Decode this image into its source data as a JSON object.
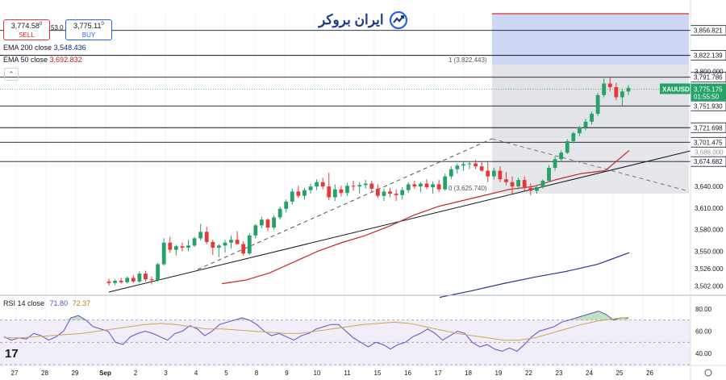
{
  "trade": {
    "sell_price": "3,774.58",
    "sell_sup": "0",
    "sell_label": "SELL",
    "spread": "53.0",
    "buy_price": "3,775.11",
    "buy_sup": "0",
    "buy_label": "BUY"
  },
  "legend": {
    "ema200_label": "EMA 200 close",
    "ema200_value": "3,548.436",
    "ema50_label": "EMA 50 close",
    "ema50_value": "3,692.832",
    "collapse_icon": "chevron-up-icon"
  },
  "brand": {
    "text": "ایران بروکر",
    "icon": "trend-arrow-icon"
  },
  "fib": {
    "top_label": "1 (3,822.443)",
    "bottom_label": "0 (3,625.740)"
  },
  "price_axis": {
    "ticks": [
      "3,800.000",
      "3,640.000",
      "3,610.000",
      "3,580.000",
      "3,550.000",
      "3,526.000",
      "3,502.000"
    ],
    "levels": [
      "3,856.821",
      "3,822.139",
      "3,791.786",
      "3,751.930",
      "3,721.698",
      "3,701.475",
      "3,674.682"
    ],
    "symbol": "XAUUSD",
    "last_price": "3,775.175",
    "countdown": "01:55:50",
    "partial_label": "3,688.000"
  },
  "rsi": {
    "label": "RSI 14 close",
    "rsi_value": "71.80",
    "ma_value": "72.37",
    "ticks": [
      "80.00",
      "60.00",
      "40.00"
    ]
  },
  "time_axis": {
    "labels": [
      "27",
      "28",
      "29",
      "Sep",
      "2",
      "3",
      "4",
      "5",
      "8",
      "9",
      "10",
      "11",
      "15",
      "16",
      "17",
      "18",
      "19",
      "22",
      "23",
      "24",
      "25",
      "26"
    ]
  },
  "tv_logo": "17",
  "settings_icon": "gear-icon",
  "chart_data": {
    "type": "candlestick",
    "symbol": "XAUUSD",
    "ohlc": [
      [
        3508,
        3512,
        3502,
        3506
      ],
      [
        3506,
        3511,
        3503,
        3509
      ],
      [
        3509,
        3513,
        3505,
        3507
      ],
      [
        3507,
        3515,
        3505,
        3513
      ],
      [
        3513,
        3517,
        3506,
        3508
      ],
      [
        3508,
        3522,
        3506,
        3519
      ],
      [
        3519,
        3523,
        3508,
        3511
      ],
      [
        3511,
        3515,
        3504,
        3510
      ],
      [
        3510,
        3534,
        3508,
        3532
      ],
      [
        3532,
        3568,
        3530,
        3562
      ],
      [
        3562,
        3570,
        3548,
        3552
      ],
      [
        3552,
        3559,
        3544,
        3557
      ],
      [
        3557,
        3562,
        3550,
        3555
      ],
      [
        3555,
        3566,
        3550,
        3558
      ],
      [
        3558,
        3570,
        3556,
        3568
      ],
      [
        3568,
        3588,
        3565,
        3577
      ],
      [
        3577,
        3584,
        3560,
        3563
      ],
      [
        3563,
        3566,
        3545,
        3555
      ],
      [
        3555,
        3560,
        3542,
        3558
      ],
      [
        3558,
        3566,
        3548,
        3562
      ],
      [
        3562,
        3572,
        3554,
        3566
      ],
      [
        3566,
        3578,
        3560,
        3560
      ],
      [
        3560,
        3564,
        3544,
        3547
      ],
      [
        3547,
        3575,
        3545,
        3572
      ],
      [
        3572,
        3588,
        3568,
        3586
      ],
      [
        3586,
        3598,
        3582,
        3594
      ],
      [
        3594,
        3596,
        3578,
        3583
      ],
      [
        3583,
        3600,
        3580,
        3597
      ],
      [
        3597,
        3612,
        3594,
        3609
      ],
      [
        3609,
        3622,
        3604,
        3619
      ],
      [
        3619,
        3637,
        3615,
        3633
      ],
      [
        3633,
        3641,
        3624,
        3627
      ],
      [
        3627,
        3638,
        3622,
        3635
      ],
      [
        3635,
        3644,
        3630,
        3640
      ],
      [
        3640,
        3650,
        3635,
        3646
      ],
      [
        3646,
        3652,
        3636,
        3640
      ],
      [
        3640,
        3659,
        3621,
        3625
      ],
      [
        3625,
        3643,
        3620,
        3636
      ],
      [
        3636,
        3641,
        3626,
        3631
      ],
      [
        3631,
        3645,
        3627,
        3641
      ],
      [
        3641,
        3648,
        3634,
        3640
      ],
      [
        3640,
        3646,
        3630,
        3642
      ],
      [
        3642,
        3649,
        3637,
        3644
      ],
      [
        3644,
        3648,
        3632,
        3637
      ],
      [
        3637,
        3643,
        3624,
        3627
      ],
      [
        3627,
        3637,
        3620,
        3633
      ],
      [
        3633,
        3638,
        3625,
        3630
      ],
      [
        3630,
        3636,
        3620,
        3628
      ],
      [
        3628,
        3639,
        3622,
        3635
      ],
      [
        3635,
        3646,
        3631,
        3643
      ],
      [
        3643,
        3648,
        3637,
        3640
      ],
      [
        3640,
        3646,
        3632,
        3644
      ],
      [
        3644,
        3650,
        3636,
        3639
      ],
      [
        3639,
        3647,
        3630,
        3643
      ],
      [
        3643,
        3649,
        3632,
        3636
      ],
      [
        3636,
        3658,
        3634,
        3654
      ],
      [
        3654,
        3668,
        3650,
        3664
      ],
      [
        3664,
        3672,
        3658,
        3669
      ],
      [
        3669,
        3674,
        3662,
        3671
      ],
      [
        3671,
        3675,
        3664,
        3672
      ],
      [
        3672,
        3677,
        3664,
        3668
      ],
      [
        3668,
        3675,
        3660,
        3662
      ],
      [
        3662,
        3674,
        3646,
        3654
      ],
      [
        3654,
        3666,
        3650,
        3662
      ],
      [
        3662,
        3668,
        3646,
        3650
      ],
      [
        3650,
        3660,
        3642,
        3646
      ],
      [
        3646,
        3654,
        3630,
        3640
      ],
      [
        3640,
        3652,
        3636,
        3649
      ],
      [
        3649,
        3654,
        3634,
        3638
      ],
      [
        3638,
        3644,
        3628,
        3634
      ],
      [
        3634,
        3642,
        3630,
        3639
      ],
      [
        3639,
        3650,
        3637,
        3648
      ],
      [
        3648,
        3670,
        3646,
        3666
      ],
      [
        3666,
        3682,
        3662,
        3678
      ],
      [
        3678,
        3690,
        3674,
        3687
      ],
      [
        3687,
        3706,
        3685,
        3703
      ],
      [
        3703,
        3716,
        3700,
        3714
      ],
      [
        3714,
        3724,
        3710,
        3722
      ],
      [
        3722,
        3734,
        3718,
        3730
      ],
      [
        3730,
        3744,
        3726,
        3741
      ],
      [
        3741,
        3770,
        3738,
        3767
      ],
      [
        3767,
        3790,
        3764,
        3783
      ],
      [
        3783,
        3791,
        3772,
        3778
      ],
      [
        3778,
        3784,
        3760,
        3764
      ],
      [
        3764,
        3776,
        3752,
        3772
      ],
      [
        3772,
        3781,
        3767,
        3777
      ]
    ],
    "ema50": [
      3505,
      3510,
      3520,
      3535,
      3550,
      3562,
      3572,
      3585,
      3600,
      3612,
      3620,
      3628,
      3636,
      3640,
      3650,
      3658,
      3662,
      3690
    ],
    "ema200": [
      3486,
      3495,
      3505,
      3514,
      3522,
      3532,
      3548
    ],
    "rsi": [
      55,
      52,
      54,
      53,
      58,
      56,
      52,
      55,
      60,
      72,
      74,
      70,
      64,
      62,
      60,
      50,
      48,
      55,
      58,
      60,
      58,
      55,
      52,
      58,
      60,
      65,
      62,
      56,
      60,
      66,
      68,
      70,
      72,
      70,
      66,
      60,
      56,
      58,
      55,
      52,
      56,
      58,
      62,
      64,
      66,
      66,
      60,
      54,
      50,
      46,
      50,
      48,
      44,
      48,
      50,
      55,
      58,
      62,
      58,
      52,
      56,
      60,
      58,
      50,
      46,
      48,
      44,
      42,
      45,
      42,
      48,
      55,
      60,
      62,
      64,
      68,
      70,
      72,
      74,
      76,
      78,
      75,
      70,
      72,
      71.8
    ],
    "rsi_ma": [
      54,
      54,
      55,
      56,
      57,
      58,
      60,
      62,
      64,
      66,
      67,
      66,
      64,
      62,
      62,
      61,
      60,
      59,
      58,
      58,
      60,
      62,
      64,
      66,
      67,
      68,
      67,
      64,
      61,
      58,
      56,
      54,
      52,
      52,
      54,
      58,
      62,
      66,
      69,
      71,
      72.37
    ],
    "price_range": [
      3490,
      3880
    ],
    "rsi_range": [
      30,
      90
    ],
    "fib_levels": [
      3822.443,
      3625.74
    ]
  }
}
